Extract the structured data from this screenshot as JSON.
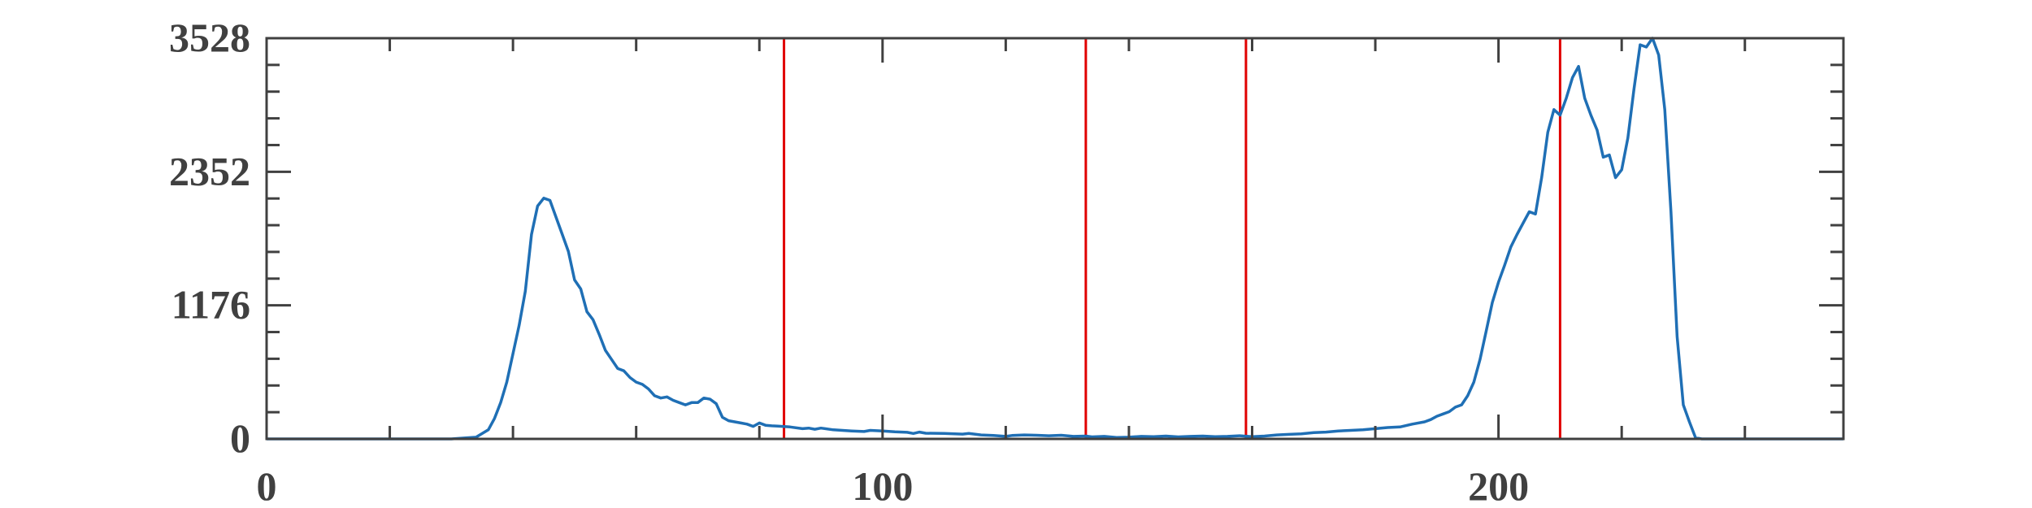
{
  "chart_data": {
    "type": "line",
    "title": "",
    "xlabel": "",
    "ylabel": "",
    "xlim": [
      0,
      256
    ],
    "ylim": [
      0,
      3528
    ],
    "x_ticks": [
      0,
      100,
      200
    ],
    "x_tick_labels": [
      "0",
      "100",
      "200"
    ],
    "y_ticks": [
      0,
      1176,
      2352,
      3528
    ],
    "y_tick_labels": [
      "0",
      "1176",
      "2352",
      "3528"
    ],
    "grid": false,
    "vertical_lines": [
      0,
      84,
      133,
      159,
      210
    ],
    "series": [
      {
        "color": "#1f6fb5",
        "points": [
          [
            0,
            0
          ],
          [
            30,
            0
          ],
          [
            34,
            15
          ],
          [
            36,
            80
          ],
          [
            37,
            180
          ],
          [
            38,
            320
          ],
          [
            39,
            500
          ],
          [
            40,
            750
          ],
          [
            41,
            1000
          ],
          [
            42,
            1300
          ],
          [
            43,
            1800
          ],
          [
            44,
            2050
          ],
          [
            45,
            2120
          ],
          [
            46,
            2100
          ],
          [
            47,
            1950
          ],
          [
            48,
            1800
          ],
          [
            49,
            1650
          ],
          [
            50,
            1400
          ],
          [
            51,
            1320
          ],
          [
            52,
            1120
          ],
          [
            53,
            1050
          ],
          [
            54,
            920
          ],
          [
            55,
            780
          ],
          [
            56,
            700
          ],
          [
            57,
            620
          ],
          [
            58,
            600
          ],
          [
            59,
            540
          ],
          [
            60,
            500
          ],
          [
            61,
            480
          ],
          [
            62,
            440
          ],
          [
            63,
            380
          ],
          [
            64,
            360
          ],
          [
            65,
            370
          ],
          [
            66,
            340
          ],
          [
            67,
            320
          ],
          [
            68,
            300
          ],
          [
            69,
            320
          ],
          [
            70,
            320
          ],
          [
            71,
            360
          ],
          [
            72,
            350
          ],
          [
            73,
            310
          ],
          [
            74,
            190
          ],
          [
            75,
            160
          ],
          [
            76,
            150
          ],
          [
            77,
            140
          ],
          [
            78,
            130
          ],
          [
            79,
            110
          ],
          [
            80,
            140
          ],
          [
            81,
            120
          ],
          [
            82,
            115
          ],
          [
            83,
            112
          ],
          [
            85,
            105
          ],
          [
            87,
            90
          ],
          [
            88,
            95
          ],
          [
            89,
            85
          ],
          [
            90,
            95
          ],
          [
            92,
            80
          ],
          [
            95,
            70
          ],
          [
            97,
            65
          ],
          [
            98,
            75
          ],
          [
            100,
            70
          ],
          [
            102,
            62
          ],
          [
            104,
            58
          ],
          [
            105,
            48
          ],
          [
            106,
            60
          ],
          [
            107,
            50
          ],
          [
            110,
            48
          ],
          [
            113,
            42
          ],
          [
            114,
            48
          ],
          [
            116,
            35
          ],
          [
            118,
            30
          ],
          [
            120,
            22
          ],
          [
            121,
            30
          ],
          [
            123,
            35
          ],
          [
            125,
            32
          ],
          [
            127,
            28
          ],
          [
            129,
            32
          ],
          [
            131,
            22
          ],
          [
            133,
            25
          ],
          [
            134,
            18
          ],
          [
            136,
            22
          ],
          [
            138,
            12
          ],
          [
            140,
            15
          ],
          [
            142,
            22
          ],
          [
            144,
            20
          ],
          [
            146,
            25
          ],
          [
            148,
            18
          ],
          [
            150,
            22
          ],
          [
            152,
            25
          ],
          [
            154,
            20
          ],
          [
            156,
            22
          ],
          [
            158,
            28
          ],
          [
            160,
            20
          ],
          [
            162,
            25
          ],
          [
            164,
            35
          ],
          [
            166,
            40
          ],
          [
            168,
            45
          ],
          [
            170,
            55
          ],
          [
            172,
            60
          ],
          [
            174,
            70
          ],
          [
            176,
            75
          ],
          [
            178,
            80
          ],
          [
            180,
            90
          ],
          [
            182,
            100
          ],
          [
            184,
            105
          ],
          [
            186,
            130
          ],
          [
            188,
            150
          ],
          [
            189,
            170
          ],
          [
            190,
            200
          ],
          [
            191,
            220
          ],
          [
            192,
            240
          ],
          [
            193,
            280
          ],
          [
            194,
            300
          ],
          [
            195,
            380
          ],
          [
            196,
            500
          ],
          [
            197,
            700
          ],
          [
            198,
            950
          ],
          [
            199,
            1200
          ],
          [
            200,
            1380
          ],
          [
            201,
            1530
          ],
          [
            202,
            1690
          ],
          [
            203,
            1800
          ],
          [
            204,
            1900
          ],
          [
            205,
            2000
          ],
          [
            206,
            1980
          ],
          [
            207,
            2300
          ],
          [
            208,
            2700
          ],
          [
            209,
            2900
          ],
          [
            210,
            2850
          ],
          [
            211,
            3000
          ],
          [
            212,
            3180
          ],
          [
            213,
            3280
          ],
          [
            214,
            3000
          ],
          [
            215,
            2850
          ],
          [
            216,
            2720
          ],
          [
            217,
            2480
          ],
          [
            218,
            2500
          ],
          [
            219,
            2300
          ],
          [
            220,
            2370
          ],
          [
            221,
            2650
          ],
          [
            222,
            3080
          ],
          [
            223,
            3470
          ],
          [
            224,
            3450
          ],
          [
            225,
            3528
          ],
          [
            226,
            3380
          ],
          [
            227,
            2900
          ],
          [
            228,
            2000
          ],
          [
            229,
            900
          ],
          [
            230,
            300
          ],
          [
            231,
            150
          ],
          [
            232,
            10
          ],
          [
            233,
            0
          ],
          [
            256,
            0
          ]
        ]
      }
    ],
    "vertical_line_color": "#e00000",
    "axis_color": "#404040"
  }
}
